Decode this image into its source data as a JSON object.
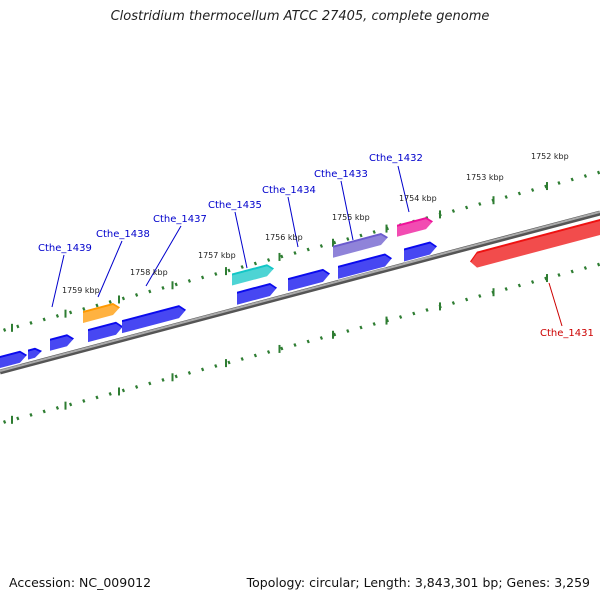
{
  "title": "Clostridium thermocellum ATCC 27405, complete genome",
  "footer": {
    "accession": "Accession: NC_009012",
    "topology": "Topology: circular; Length: 3,843,301 bp; Genes: 3,259"
  },
  "colors": {
    "backbone": "#777777",
    "tick": "#2e7d32",
    "gene_default": "#0a0aee",
    "label_default": "#0000cc",
    "label_highlight": "#cc0000",
    "highlight_gene": "#ee1111"
  },
  "ticks": [
    {
      "label": "1752 kbp"
    },
    {
      "label": "1753 kbp"
    },
    {
      "label": "1754 kbp"
    },
    {
      "label": "1755 kbp"
    },
    {
      "label": "1756 kbp"
    },
    {
      "label": "1757 kbp"
    },
    {
      "label": "1758 kbp"
    },
    {
      "label": "1759 kbp"
    }
  ],
  "gene_labels": [
    {
      "name": "Cthe_1431",
      "highlight": true
    },
    {
      "name": "Cthe_1432"
    },
    {
      "name": "Cthe_1433"
    },
    {
      "name": "Cthe_1434"
    },
    {
      "name": "Cthe_1435"
    },
    {
      "name": "Cthe_1437"
    },
    {
      "name": "Cthe_1438"
    },
    {
      "name": "Cthe_1439"
    }
  ]
}
